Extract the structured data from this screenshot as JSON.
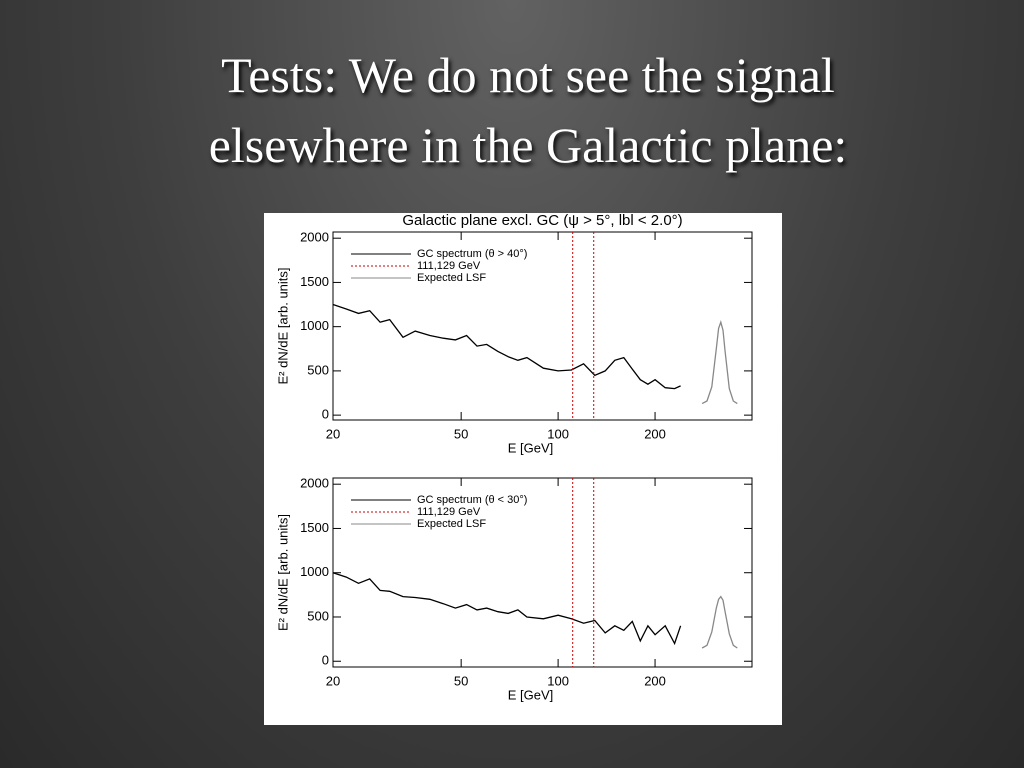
{
  "slide": {
    "title_lines": [
      "Tests: We do not see the signal",
      "elsewhere in the Galactic plane:"
    ]
  },
  "chart_data": [
    {
      "type": "line",
      "title": "Galactic plane excl. GC (ψ > 5°, lbl < 2.0°)",
      "x_label": "E [GeV]",
      "y_label": "E² dN/dE [arb. units]",
      "x_log": true,
      "xlim": [
        20,
        400
      ],
      "ylim": [
        -55,
        2070
      ],
      "xticks": [
        20,
        50,
        100,
        200
      ],
      "yticks": [
        0,
        500,
        1000,
        1500,
        2000
      ],
      "series": [
        {
          "name": "GC spectrum (θ > 40°)",
          "color": "#000000",
          "x": [
            20,
            22,
            24,
            26,
            28,
            30,
            33,
            36,
            40,
            44,
            48,
            52,
            56,
            60,
            65,
            70,
            75,
            80,
            90,
            100,
            110,
            120,
            130,
            140,
            150,
            160,
            170,
            180,
            190,
            200,
            215,
            230,
            240
          ],
          "values": [
            1250,
            1200,
            1150,
            1180,
            1050,
            1080,
            880,
            950,
            900,
            870,
            850,
            900,
            780,
            800,
            720,
            660,
            620,
            650,
            530,
            500,
            510,
            580,
            450,
            500,
            620,
            650,
            520,
            400,
            350,
            400,
            310,
            300,
            330
          ]
        },
        {
          "name": "111,129 GeV",
          "color": "#cc0000",
          "xlines": [
            111,
            129
          ]
        },
        {
          "name": "Expected LSF",
          "color": "#888888",
          "x": [
            280,
            290,
            300,
            310,
            315,
            320,
            325,
            330,
            340,
            350,
            360
          ],
          "values": [
            130,
            160,
            320,
            750,
            980,
            1050,
            960,
            720,
            300,
            160,
            130
          ]
        }
      ]
    },
    {
      "type": "line",
      "x_label": "E [GeV]",
      "y_label": "E² dN/dE [arb. units]",
      "x_log": true,
      "xlim": [
        20,
        400
      ],
      "ylim": [
        -65,
        2070
      ],
      "xticks": [
        20,
        50,
        100,
        200
      ],
      "yticks": [
        0,
        500,
        1000,
        1500,
        2000
      ],
      "series": [
        {
          "name": "GC spectrum (θ < 30°)",
          "color": "#000000",
          "x": [
            20,
            22,
            24,
            26,
            28,
            30,
            33,
            36,
            40,
            44,
            48,
            52,
            56,
            60,
            65,
            70,
            75,
            80,
            90,
            100,
            110,
            120,
            130,
            140,
            150,
            160,
            170,
            180,
            190,
            200,
            215,
            230,
            240
          ],
          "values": [
            1000,
            950,
            880,
            930,
            800,
            790,
            730,
            720,
            700,
            650,
            600,
            640,
            580,
            600,
            560,
            540,
            580,
            500,
            480,
            520,
            480,
            430,
            460,
            320,
            400,
            350,
            450,
            230,
            400,
            300,
            400,
            200,
            400
          ]
        },
        {
          "name": "111,129 GeV",
          "color": "#cc0000",
          "xlines": [
            111,
            129
          ]
        },
        {
          "name": "Expected LSF",
          "color": "#888888",
          "x": [
            280,
            290,
            300,
            310,
            315,
            320,
            325,
            330,
            340,
            350,
            360
          ],
          "values": [
            150,
            180,
            330,
            600,
            700,
            730,
            690,
            560,
            310,
            180,
            150
          ]
        }
      ]
    }
  ]
}
